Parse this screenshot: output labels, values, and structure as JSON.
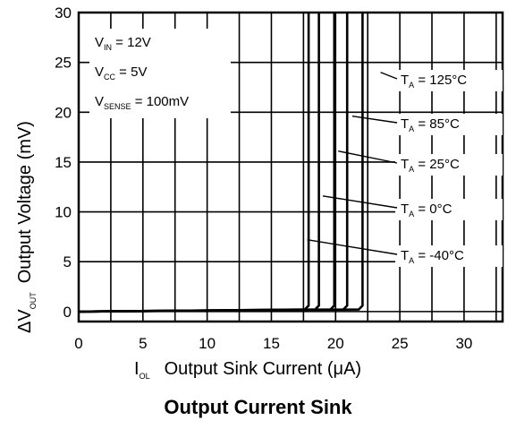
{
  "chart_data": {
    "type": "line",
    "title": "Output Current Sink",
    "xlabel": {
      "symbol": "I",
      "subscript": "OL",
      "text": "Output Sink Current (μA)"
    },
    "ylabel": {
      "symbol": "ΔV",
      "subscript": "OUT",
      "text": "Output Voltage (mV)"
    },
    "xlim": [
      0,
      33
    ],
    "ylim": [
      -1,
      30
    ],
    "xticks": [
      0,
      5,
      10,
      15,
      20,
      25,
      30
    ],
    "yticks": [
      0,
      5,
      10,
      15,
      20,
      25,
      30
    ],
    "grid": true,
    "conditions": [
      {
        "symbol": "V",
        "subscript": "IN",
        "text": " = 12V"
      },
      {
        "symbol": "V",
        "subscript": "CC",
        "text": " = 5V"
      },
      {
        "symbol": "V",
        "subscript": "SENSE",
        "text": " = 100mV"
      }
    ],
    "series": [
      {
        "name": "T_A = 125°C",
        "label_symbol": "T",
        "label_subscript": "A",
        "label_text": " = 125°C",
        "x": [
          0,
          17.6,
          17.9,
          17.9
        ],
        "y": [
          0,
          0.2,
          0.6,
          30
        ],
        "annotation_point": [
          23.5,
          24
        ]
      },
      {
        "name": "T_A = 85°C",
        "label_symbol": "T",
        "label_subscript": "A",
        "label_text": " = 85°C",
        "x": [
          0,
          18.4,
          18.7,
          18.7
        ],
        "y": [
          0,
          0.2,
          0.6,
          30
        ],
        "annotation_point": [
          21.3,
          19.6
        ]
      },
      {
        "name": "T_A = 25°C",
        "label_symbol": "T",
        "label_subscript": "A",
        "label_text": " = 25°C",
        "x": [
          0,
          19.6,
          19.9,
          19.9
        ],
        "y": [
          0,
          0.2,
          0.6,
          30
        ],
        "annotation_point": [
          20.2,
          16.1
        ]
      },
      {
        "name": "T_A = 0°C",
        "label_symbol": "T",
        "label_subscript": "A",
        "label_text": " = 0°C",
        "x": [
          0,
          20.6,
          20.9,
          20.9
        ],
        "y": [
          0,
          0.2,
          0.6,
          30
        ],
        "annotation_point": [
          19.0,
          11.6
        ]
      },
      {
        "name": "T_A = -40°C",
        "label_symbol": "T",
        "label_subscript": "A",
        "label_text": " = -40°C",
        "x": [
          0,
          21.8,
          22.1,
          22.1
        ],
        "y": [
          0,
          0.2,
          0.6,
          30
        ],
        "annotation_point": [
          17.8,
          7.2
        ]
      }
    ]
  }
}
